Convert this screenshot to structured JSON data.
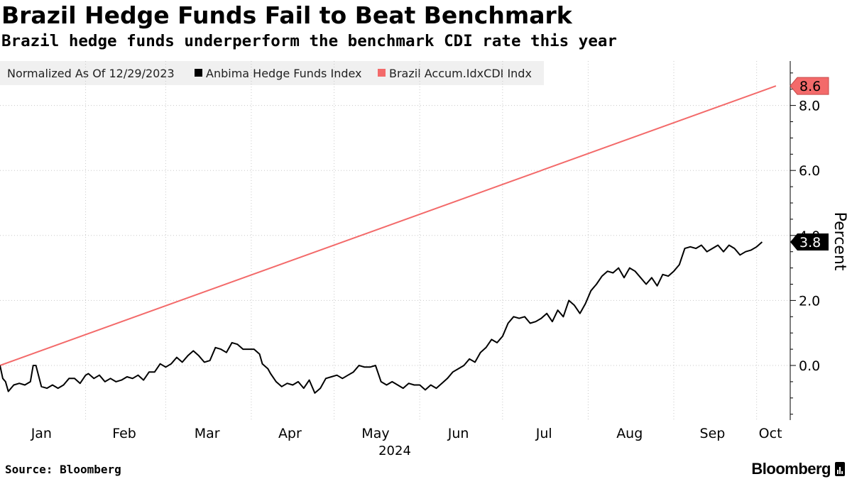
{
  "title": "Brazil Hedge Funds Fail to Beat Benchmark",
  "subtitle": "Brazil hedge funds underperform the benchmark CDI rate this year",
  "source": "Source: Bloomberg",
  "brand": "Bloomberg",
  "chart_data": {
    "type": "line",
    "title": "Brazil Hedge Funds Fail to Beat Benchmark",
    "xlabel": "2024",
    "ylabel": "Percent",
    "ylim": [
      -1.7,
      9.2
    ],
    "yticks": [
      0,
      2,
      4,
      6,
      8
    ],
    "yticklabels": [
      "0.0",
      "2.0",
      "4.0",
      "6.0",
      "8.0"
    ],
    "xlim": [
      0,
      280
    ],
    "months": [
      {
        "label": "Jan",
        "start": 0,
        "mid": 15
      },
      {
        "label": "Feb",
        "start": 31,
        "mid": 45
      },
      {
        "label": "Mar",
        "start": 60,
        "mid": 75
      },
      {
        "label": "Apr",
        "start": 91,
        "mid": 105
      },
      {
        "label": "May",
        "start": 121,
        "mid": 136
      },
      {
        "label": "Jun",
        "start": 152,
        "mid": 166
      },
      {
        "label": "Jul",
        "start": 182,
        "mid": 197
      },
      {
        "label": "Aug",
        "start": 213,
        "mid": 228
      },
      {
        "label": "Sep",
        "start": 244,
        "mid": 258
      },
      {
        "label": "Oct",
        "start": 274,
        "mid": 279
      }
    ],
    "year_label": "2024",
    "legend": {
      "header": "Normalized As Of 12/29/2023",
      "position": "top-left"
    },
    "series": [
      {
        "name": "Anbima Hedge Funds Index",
        "color": "#000000",
        "last_value_label": "3.8",
        "points": [
          [
            0,
            0.0
          ],
          [
            1,
            -0.4
          ],
          [
            2,
            -0.5
          ],
          [
            3,
            -0.8
          ],
          [
            5,
            -0.6
          ],
          [
            7,
            -0.55
          ],
          [
            9,
            -0.6
          ],
          [
            11,
            -0.5
          ],
          [
            12,
            0.0
          ],
          [
            13,
            0.0
          ],
          [
            15,
            -0.65
          ],
          [
            17,
            -0.7
          ],
          [
            19,
            -0.6
          ],
          [
            21,
            -0.7
          ],
          [
            23,
            -0.6
          ],
          [
            25,
            -0.4
          ],
          [
            27,
            -0.4
          ],
          [
            29,
            -0.55
          ],
          [
            31,
            -0.3
          ],
          [
            32,
            -0.25
          ],
          [
            34,
            -0.4
          ],
          [
            36,
            -0.3
          ],
          [
            38,
            -0.5
          ],
          [
            40,
            -0.4
          ],
          [
            42,
            -0.5
          ],
          [
            44,
            -0.45
          ],
          [
            46,
            -0.35
          ],
          [
            48,
            -0.4
          ],
          [
            50,
            -0.3
          ],
          [
            52,
            -0.45
          ],
          [
            54,
            -0.2
          ],
          [
            56,
            -0.2
          ],
          [
            58,
            0.05
          ],
          [
            60,
            -0.05
          ],
          [
            62,
            0.05
          ],
          [
            64,
            0.25
          ],
          [
            66,
            0.1
          ],
          [
            68,
            0.3
          ],
          [
            70,
            0.45
          ],
          [
            72,
            0.3
          ],
          [
            74,
            0.1
          ],
          [
            76,
            0.15
          ],
          [
            78,
            0.55
          ],
          [
            80,
            0.5
          ],
          [
            82,
            0.4
          ],
          [
            84,
            0.7
          ],
          [
            86,
            0.65
          ],
          [
            88,
            0.5
          ],
          [
            90,
            0.5
          ],
          [
            92,
            0.5
          ],
          [
            94,
            0.35
          ],
          [
            95,
            0.05
          ],
          [
            97,
            -0.1
          ],
          [
            98,
            -0.25
          ],
          [
            100,
            -0.5
          ],
          [
            102,
            -0.65
          ],
          [
            104,
            -0.55
          ],
          [
            106,
            -0.6
          ],
          [
            108,
            -0.5
          ],
          [
            110,
            -0.7
          ],
          [
            112,
            -0.45
          ],
          [
            114,
            -0.85
          ],
          [
            116,
            -0.7
          ],
          [
            118,
            -0.4
          ],
          [
            120,
            -0.35
          ],
          [
            122,
            -0.3
          ],
          [
            124,
            -0.4
          ],
          [
            126,
            -0.3
          ],
          [
            128,
            -0.2
          ],
          [
            130,
            0.0
          ],
          [
            132,
            -0.05
          ],
          [
            134,
            -0.05
          ],
          [
            136,
            0.0
          ],
          [
            138,
            -0.5
          ],
          [
            140,
            -0.6
          ],
          [
            142,
            -0.5
          ],
          [
            144,
            -0.6
          ],
          [
            146,
            -0.7
          ],
          [
            148,
            -0.55
          ],
          [
            150,
            -0.6
          ],
          [
            152,
            -0.6
          ],
          [
            154,
            -0.75
          ],
          [
            156,
            -0.6
          ],
          [
            158,
            -0.7
          ],
          [
            160,
            -0.55
          ],
          [
            162,
            -0.4
          ],
          [
            164,
            -0.2
          ],
          [
            166,
            -0.1
          ],
          [
            168,
            0.0
          ],
          [
            170,
            0.2
          ],
          [
            172,
            0.1
          ],
          [
            174,
            0.4
          ],
          [
            176,
            0.55
          ],
          [
            178,
            0.8
          ],
          [
            180,
            0.7
          ],
          [
            182,
            0.9
          ],
          [
            184,
            1.3
          ],
          [
            186,
            1.5
          ],
          [
            188,
            1.45
          ],
          [
            190,
            1.5
          ],
          [
            192,
            1.3
          ],
          [
            194,
            1.35
          ],
          [
            196,
            1.45
          ],
          [
            198,
            1.6
          ],
          [
            200,
            1.35
          ],
          [
            202,
            1.7
          ],
          [
            204,
            1.5
          ],
          [
            206,
            2.0
          ],
          [
            208,
            1.85
          ],
          [
            210,
            1.6
          ],
          [
            212,
            1.9
          ],
          [
            214,
            2.3
          ],
          [
            216,
            2.5
          ],
          [
            218,
            2.75
          ],
          [
            220,
            2.9
          ],
          [
            222,
            2.85
          ],
          [
            224,
            3.0
          ],
          [
            226,
            2.7
          ],
          [
            228,
            3.0
          ],
          [
            230,
            2.9
          ],
          [
            232,
            2.7
          ],
          [
            234,
            2.5
          ],
          [
            236,
            2.7
          ],
          [
            238,
            2.45
          ],
          [
            240,
            2.8
          ],
          [
            242,
            2.75
          ],
          [
            244,
            2.9
          ],
          [
            246,
            3.1
          ],
          [
            248,
            3.6
          ],
          [
            250,
            3.65
          ],
          [
            252,
            3.6
          ],
          [
            254,
            3.7
          ],
          [
            256,
            3.5
          ],
          [
            258,
            3.6
          ],
          [
            260,
            3.7
          ],
          [
            262,
            3.5
          ],
          [
            264,
            3.7
          ],
          [
            266,
            3.6
          ],
          [
            268,
            3.4
          ],
          [
            270,
            3.5
          ],
          [
            272,
            3.55
          ],
          [
            274,
            3.65
          ],
          [
            276,
            3.8
          ]
        ]
      },
      {
        "name": "Brazil Accum.IdxCDI Indx",
        "color": "#f36a6a",
        "last_value_label": "8.6",
        "points": [
          [
            0,
            0.0
          ],
          [
            281,
            8.6
          ]
        ]
      }
    ]
  }
}
